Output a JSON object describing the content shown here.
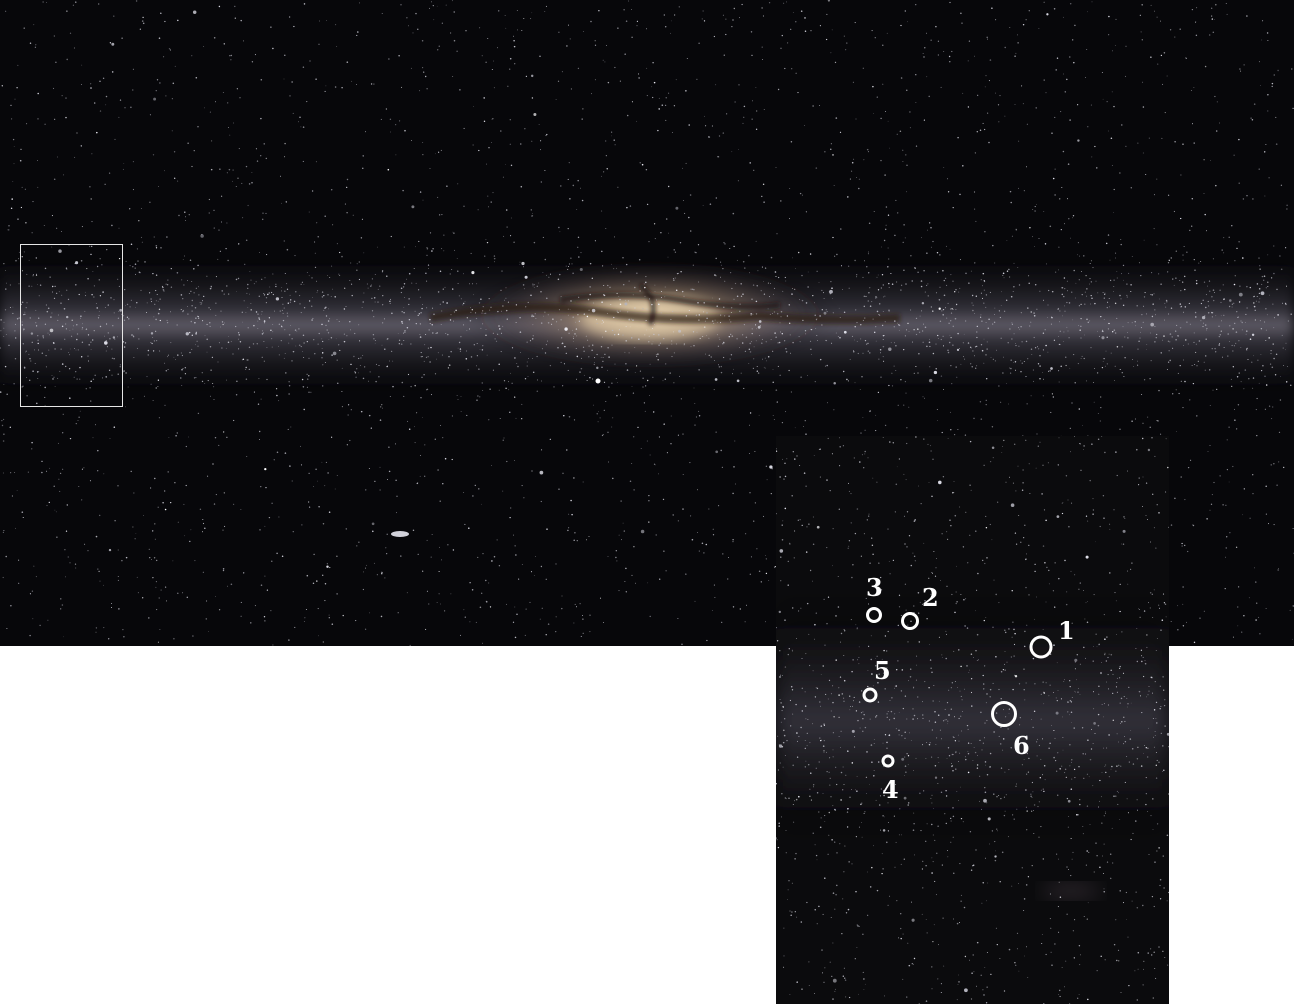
{
  "panorama": {
    "description_icon": "milky-way-panorama"
  },
  "inset": {
    "description_icon": "zoomed-star-field"
  },
  "markers": [
    {
      "label": "1"
    },
    {
      "label": "2"
    },
    {
      "label": "3"
    },
    {
      "label": "4"
    },
    {
      "label": "5"
    },
    {
      "label": "6"
    }
  ],
  "colors": {
    "sky": "#07070a",
    "band": "#bdb3c6",
    "core": "#f0d9b5",
    "marker": "#ffffff"
  }
}
